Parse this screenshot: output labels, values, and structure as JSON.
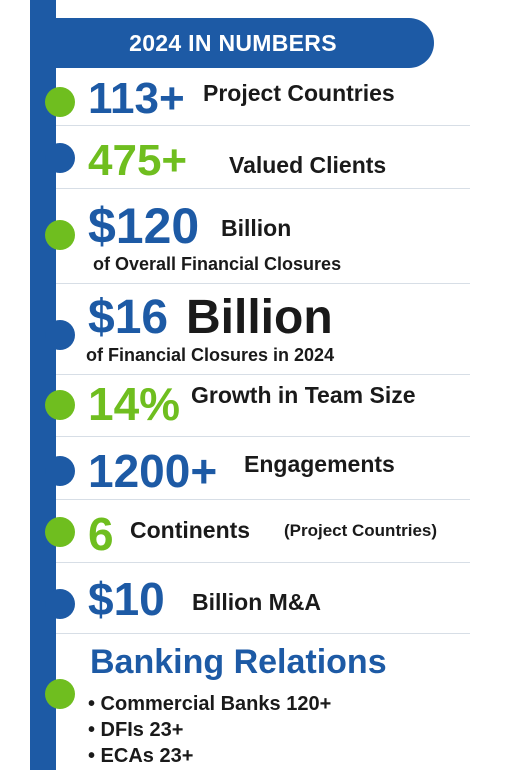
{
  "header": {
    "title": "2024 IN NUMBERS"
  },
  "colors": {
    "brand_blue": "#1d5aa5",
    "brand_green": "#6fbe1f",
    "text": "#1a1a1a"
  },
  "stats": [
    {
      "value": "113+",
      "label": "Project Countries"
    },
    {
      "value": "475+",
      "label": "Valued Clients"
    },
    {
      "value": "$120",
      "label": "Billion",
      "sub": "of Overall Financial Closures"
    },
    {
      "value": "$16",
      "label": "Billion",
      "sub": "of Financial Closures in 2024"
    },
    {
      "value": "14%",
      "label": "Growth in Team Size"
    },
    {
      "value": "1200+",
      "label": "Engagements"
    },
    {
      "value": "6",
      "label": "Continents",
      "note": "(Project Countries)"
    },
    {
      "value": "$10",
      "label": "Billion M&A"
    }
  ],
  "banking": {
    "title": "Banking Relations",
    "items": [
      "• Commercial Banks 120+",
      "• DFIs 23+",
      "• ECAs 23+"
    ]
  }
}
